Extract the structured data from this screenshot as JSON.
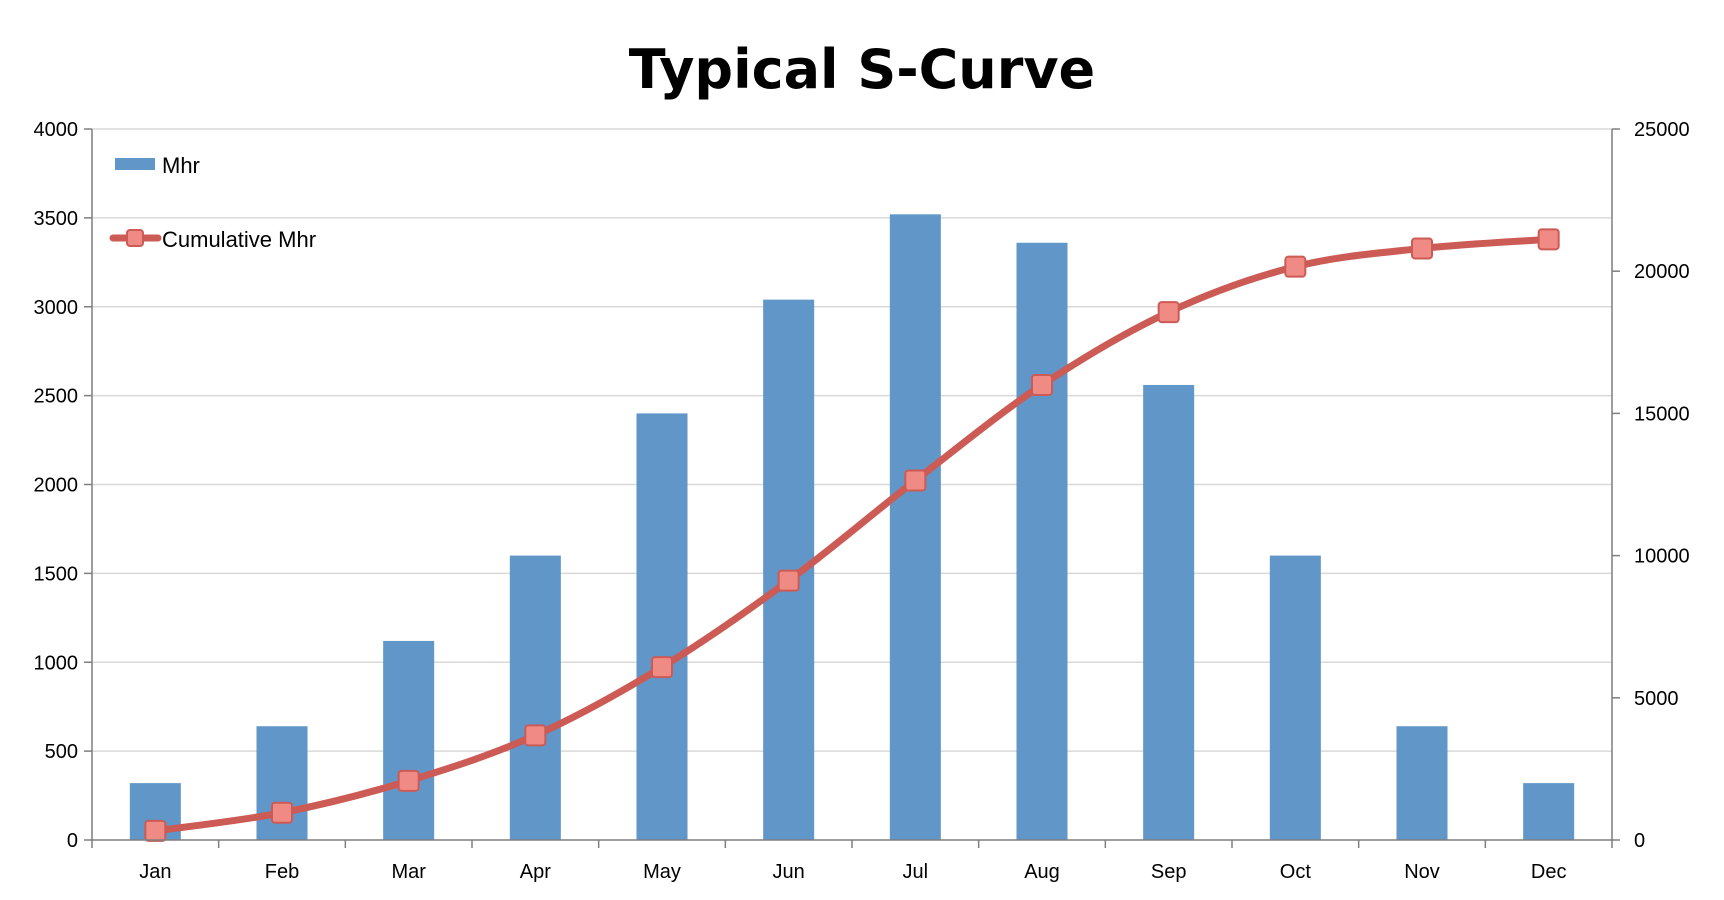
{
  "chart_data": {
    "type": "bar",
    "title": "Typical S-Curve",
    "categories": [
      "Jan",
      "Feb",
      "Mar",
      "Apr",
      "May",
      "Jun",
      "Jul",
      "Aug",
      "Sep",
      "Oct",
      "Nov",
      "Dec"
    ],
    "series": [
      {
        "name": "Mhr",
        "type": "bar",
        "axis": "left",
        "color": "#6096c8",
        "values": [
          320,
          640,
          1120,
          1600,
          2400,
          3040,
          3520,
          3360,
          2560,
          1600,
          640,
          320
        ]
      },
      {
        "name": "Cumulative Mhr",
        "type": "line",
        "axis": "right",
        "color": "#cd5b55",
        "marker_color": "#f08a84",
        "values": [
          320,
          960,
          2080,
          3680,
          6080,
          9120,
          12640,
          16000,
          18560,
          20160,
          20800,
          21120
        ]
      }
    ],
    "y_left": {
      "min": 0,
      "max": 4000,
      "ticks": [
        "0",
        "500",
        "1000",
        "1500",
        "2000",
        "2500",
        "3000",
        "3500",
        "4000"
      ]
    },
    "y_right": {
      "min": 0,
      "max": 25000,
      "ticks": [
        "0",
        "5000",
        "10000",
        "15000",
        "20000",
        "25000"
      ]
    },
    "grid": true,
    "legend_position": "top-left",
    "xlabel": "",
    "ylabel": ""
  }
}
